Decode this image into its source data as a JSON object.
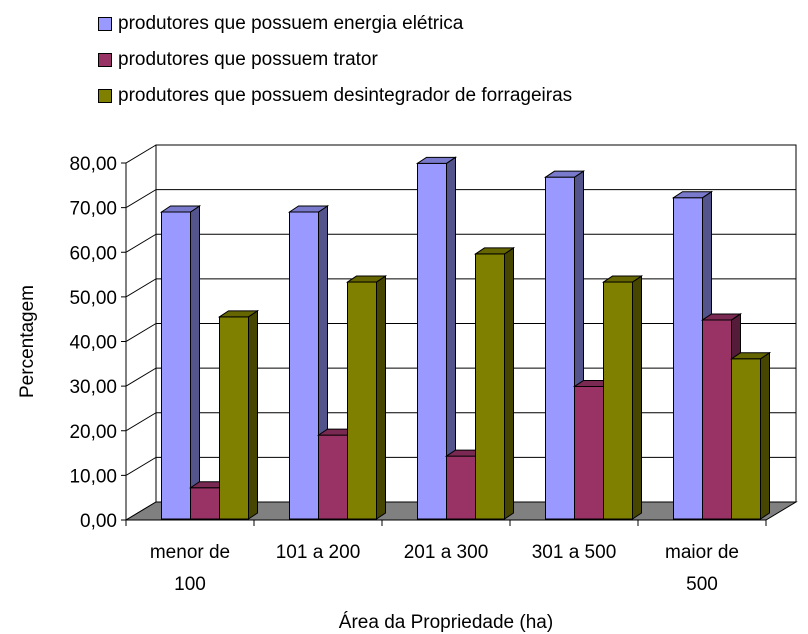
{
  "chart_data": {
    "type": "bar",
    "categories": [
      [
        "menor de",
        "100"
      ],
      [
        "101 a 200"
      ],
      [
        "201 a 300"
      ],
      [
        "301 a 500"
      ],
      [
        "maior de",
        "500"
      ]
    ],
    "series": [
      {
        "name": "produtores que possuem energia elétrica",
        "values": [
          68.8,
          68.8,
          79.7,
          76.6,
          72.0
        ],
        "color": "#9999ff"
      },
      {
        "name": "produtores que possuem trator",
        "values": [
          7.0,
          18.8,
          14.1,
          29.7,
          44.6
        ],
        "color": "#993366"
      },
      {
        "name": "produtores que possuem desintegrador de forrageiras",
        "values": [
          45.3,
          53.1,
          59.4,
          53.1,
          35.9
        ],
        "color": "#808000"
      }
    ],
    "xlabel": "Área da Propriedade (ha)",
    "ylabel": "Percentagem",
    "ylim": [
      0,
      80
    ],
    "yticks": [
      "0,00",
      "10,00",
      "20,00",
      "30,00",
      "40,00",
      "50,00",
      "60,00",
      "70,00",
      "80,00"
    ],
    "grid": true,
    "legend_position": "top",
    "style": "3d-clustered-column"
  }
}
